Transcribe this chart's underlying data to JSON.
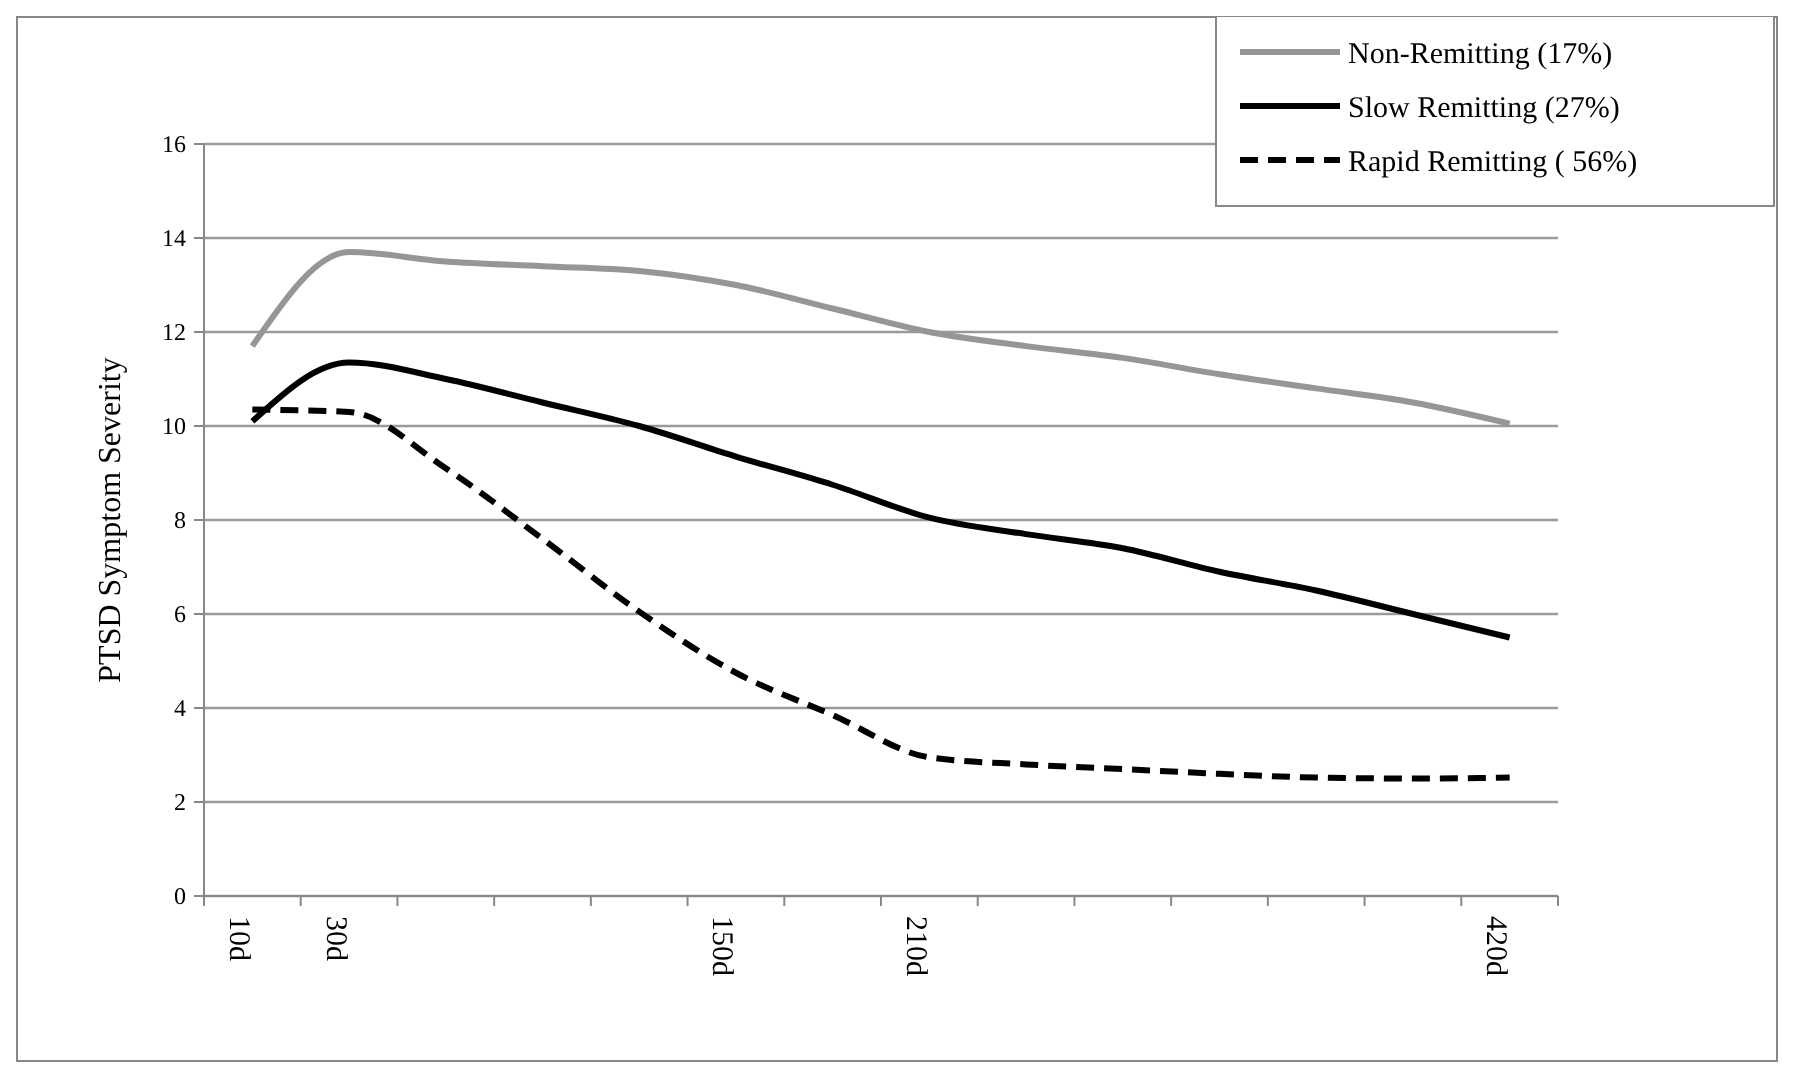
{
  "chart_data": {
    "type": "line",
    "ylabel": "PTSD Symptom Severity",
    "categories": [
      "10d",
      "30d",
      null,
      null,
      null,
      "150d",
      null,
      "210d",
      null,
      null,
      null,
      null,
      null,
      "420d"
    ],
    "ylim": [
      0,
      16
    ],
    "yticks": [
      0,
      2,
      4,
      6,
      8,
      10,
      12,
      14,
      16
    ],
    "grid": "y",
    "legend": "top right",
    "marker": "none",
    "series": [
      {
        "name": "Non-Remitting (17%)",
        "color": "#969696",
        "line_style": "solid",
        "values": [
          11.7,
          13.7,
          13.5,
          13.4,
          13.3,
          13.0,
          12.5,
          12.0,
          11.7,
          11.45,
          11.1,
          10.8,
          10.5,
          10.05
        ]
      },
      {
        "name": "Slow Remitting (27%)",
        "color": "#000000",
        "line_style": "solid",
        "values": [
          10.1,
          11.35,
          11.0,
          10.5,
          10.0,
          9.35,
          8.75,
          8.05,
          7.7,
          7.4,
          6.9,
          6.5,
          6.0,
          5.5
        ]
      },
      {
        "name": "Rapid Remitting ( 56%)",
        "color": "#000000",
        "line_style": "dashed",
        "values": [
          10.35,
          10.3,
          9.1,
          7.6,
          6.05,
          4.75,
          3.85,
          2.95,
          2.8,
          2.7,
          2.6,
          2.52,
          2.5,
          2.52
        ]
      }
    ]
  }
}
